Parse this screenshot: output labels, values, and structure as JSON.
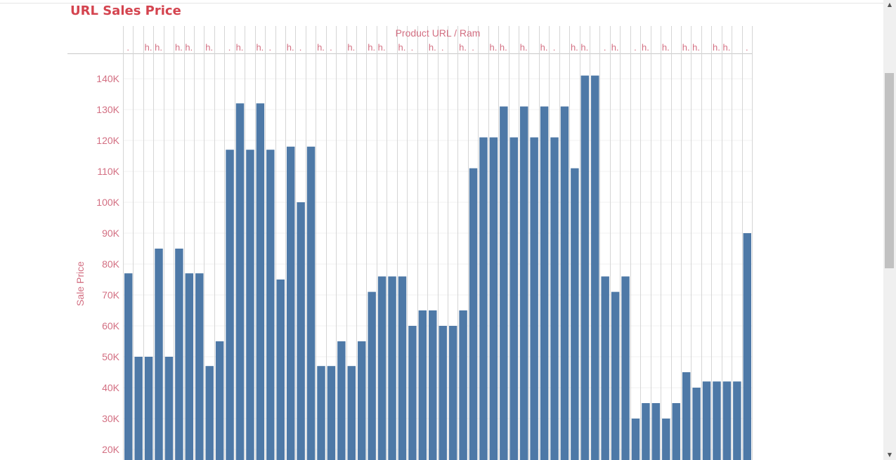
{
  "title": "URL Sales Price",
  "chart_data": {
    "type": "bar",
    "title": "URL Sales Price",
    "xlabel": "Product URL / Ram",
    "ylabel": "Sale Price",
    "header_labels": [
      ".",
      "h.",
      "h.",
      "h.",
      "h.",
      "h.",
      ".",
      "h.",
      "h.",
      ".",
      "h.",
      ".",
      "h.",
      ".",
      "h.",
      "h.",
      "h.",
      "h.",
      ".",
      "h.",
      ".",
      "h.",
      ".",
      "h.",
      "h.",
      "h.",
      "h.",
      ".",
      "h.",
      "h.",
      ".",
      "h.",
      ".",
      "h.",
      "h.",
      "h.",
      "h.",
      "h.",
      "h.",
      "."
    ],
    "values": [
      77000,
      50000,
      50000,
      85000,
      50000,
      85000,
      77000,
      77000,
      47000,
      55000,
      117000,
      132000,
      117000,
      132000,
      117000,
      75000,
      118000,
      100000,
      118000,
      47000,
      47000,
      55000,
      47000,
      55000,
      71000,
      76000,
      76000,
      76000,
      60000,
      65000,
      65000,
      60000,
      60000,
      65000,
      111000,
      121000,
      121000,
      131000,
      121000,
      131000,
      121000,
      131000,
      121000,
      131000,
      111000,
      141000,
      141000,
      76000,
      71000,
      76000,
      30000,
      35000,
      35000,
      30000,
      35000,
      45000,
      40000,
      42000,
      42000,
      42000,
      42000,
      90000
    ],
    "y_ticks": [
      "20K",
      "30K",
      "40K",
      "50K",
      "60K",
      "70K",
      "80K",
      "90K",
      "100K",
      "110K",
      "120K",
      "130K",
      "140K"
    ],
    "ylim": [
      20000,
      140000
    ],
    "grid": true,
    "colors": {
      "bar": "#4e79a7",
      "title": "#d4444f",
      "axis_text": "#d36f82",
      "grid": "#f0f0f0",
      "divider": "#d5d5d5"
    }
  },
  "scrollbar": {
    "up_arrow": "▲",
    "down_arrow": "▼"
  }
}
